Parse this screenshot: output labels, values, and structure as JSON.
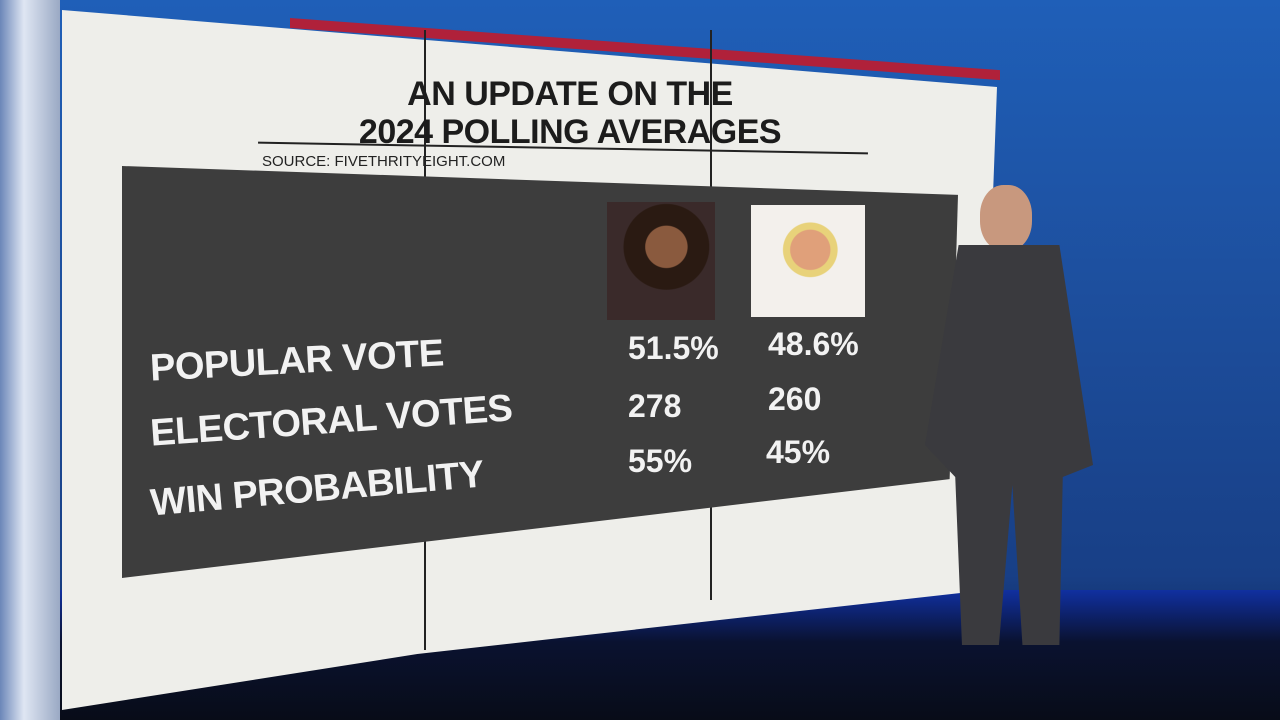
{
  "graphic": {
    "title_line1": "AN UPDATE ON THE",
    "title_line2": "2024 POLLING AVERAGES",
    "source": "SOURCE: FIVETHRITYEIGHT.COM",
    "accent_color": "#b0213a",
    "candidates": [
      {
        "photo": "candidate-photo-harris"
      },
      {
        "photo": "candidate-photo-trump"
      }
    ],
    "rows": [
      {
        "label": "POPULAR VOTE",
        "values": [
          "51.5%",
          "48.6%"
        ]
      },
      {
        "label": "ELECTORAL VOTES",
        "values": [
          "278",
          "260"
        ]
      },
      {
        "label": "WIN PROBABILITY",
        "values": [
          "55%",
          "45%"
        ]
      }
    ]
  }
}
